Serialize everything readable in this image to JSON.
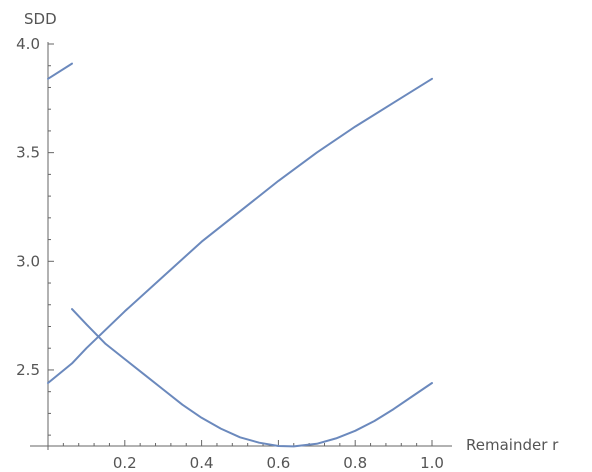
{
  "chart_data": {
    "type": "line",
    "xlabel": "Remainder r",
    "ylabel": "SDD",
    "xlim": [
      0,
      1.0
    ],
    "ylim": [
      2.15,
      4.0
    ],
    "xticks": [
      0.2,
      0.4,
      0.6,
      0.8,
      1.0
    ],
    "xtick_labels": [
      "0.2",
      "0.4",
      "0.6",
      "0.8",
      "1.0"
    ],
    "yticks": [
      2.5,
      3.0,
      3.5,
      4.0
    ],
    "ytick_labels": [
      "2.5",
      "3.0",
      "3.5",
      "4.0"
    ],
    "grid": false,
    "line_color": "#6b89bd",
    "series": [
      {
        "x": [
          0.0,
          0.0625
        ],
        "y": [
          3.84,
          3.91
        ]
      },
      {
        "x": [
          0.0,
          0.0625,
          0.1,
          0.2,
          0.3,
          0.4,
          0.5,
          0.6,
          0.7,
          0.8,
          0.9,
          1.0
        ],
        "y": [
          2.44,
          2.53,
          2.6,
          2.77,
          2.93,
          3.09,
          3.23,
          3.37,
          3.5,
          3.62,
          3.73,
          3.84
        ]
      },
      {
        "x": [
          0.0625,
          0.1,
          0.15,
          0.2,
          0.25,
          0.3,
          0.35,
          0.4,
          0.45,
          0.5,
          0.55,
          0.6,
          0.64,
          0.7,
          0.75,
          0.8,
          0.85,
          0.9,
          0.95,
          1.0
        ],
        "y": [
          2.78,
          2.71,
          2.62,
          2.55,
          2.48,
          2.41,
          2.34,
          2.28,
          2.23,
          2.19,
          2.165,
          2.15,
          2.148,
          2.16,
          2.185,
          2.22,
          2.265,
          2.32,
          2.38,
          2.44
        ]
      }
    ]
  }
}
